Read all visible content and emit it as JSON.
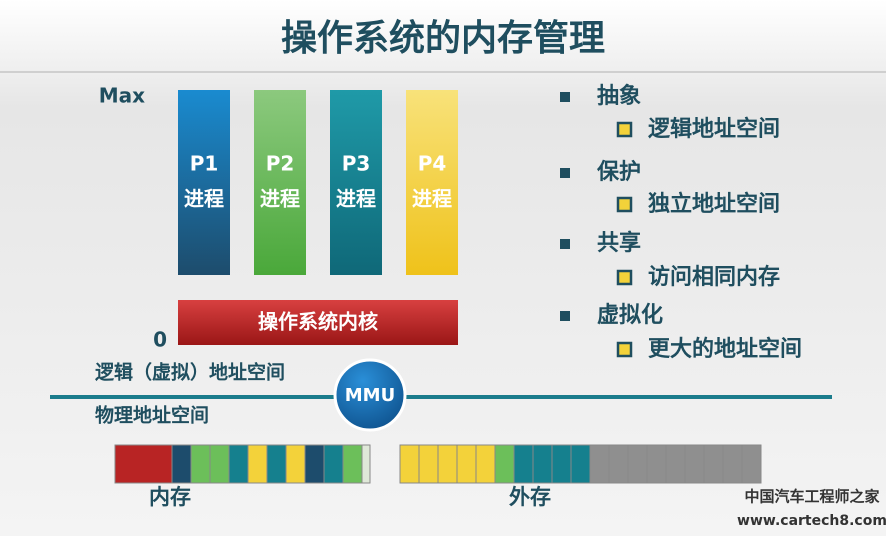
{
  "title": "操作系统的内存管理",
  "axis": {
    "max": "Max",
    "min": "0"
  },
  "processes": [
    {
      "name": "P1",
      "label": "进程"
    },
    {
      "name": "P2",
      "label": "进程"
    },
    {
      "name": "P3",
      "label": "进程"
    },
    {
      "name": "P4",
      "label": "进程"
    }
  ],
  "kernel": "操作系统内核",
  "logical_space": "逻辑（虚拟）地址空间",
  "mmu": "MMU",
  "physical_space": "物理地址空间",
  "memory": "内存",
  "storage": "外存",
  "features": [
    {
      "label": "抽象",
      "detail": "逻辑地址空间"
    },
    {
      "label": "保护",
      "detail": "独立地址空间"
    },
    {
      "label": "共享",
      "detail": "访问相同内存"
    },
    {
      "label": "虚拟化",
      "detail": "更大的地址空间"
    }
  ],
  "watermark": {
    "name": "中国汽车工程师之家",
    "url": "www.cartech8.com"
  }
}
